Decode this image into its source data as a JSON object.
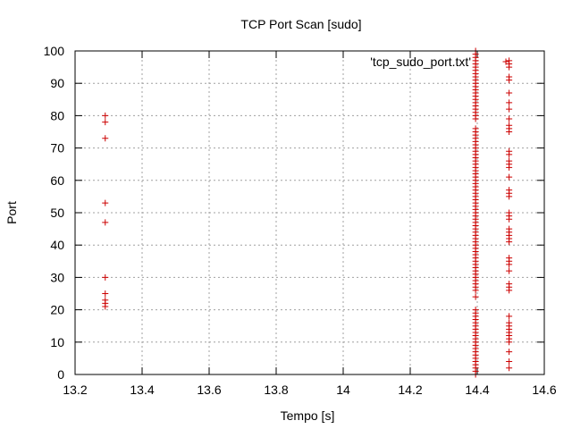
{
  "chart_data": {
    "type": "scatter",
    "title": "TCP Port Scan [sudo]",
    "xlabel": "Tempo [s]",
    "ylabel": "Port",
    "xlim": [
      13.2,
      14.6
    ],
    "ylim": [
      0,
      100
    ],
    "xticks": [
      "13.2",
      "13.4",
      "13.6",
      "13.8",
      "14",
      "14.2",
      "14.4",
      "14.6"
    ],
    "yticks": [
      "0",
      "10",
      "20",
      "30",
      "40",
      "50",
      "60",
      "70",
      "80",
      "90",
      "100"
    ],
    "grid": true,
    "legend_position": "top-right",
    "marker": "plus",
    "series": [
      {
        "name": "'tcp_sudo_port.txt'",
        "color": "#cc0000",
        "points": [
          {
            "x": 13.29,
            "y": 80
          },
          {
            "x": 13.29,
            "y": 78
          },
          {
            "x": 13.29,
            "y": 73
          },
          {
            "x": 13.29,
            "y": 53
          },
          {
            "x": 13.29,
            "y": 47
          },
          {
            "x": 13.29,
            "y": 30
          },
          {
            "x": 13.29,
            "y": 25
          },
          {
            "x": 13.29,
            "y": 23
          },
          {
            "x": 13.29,
            "y": 22
          },
          {
            "x": 13.29,
            "y": 21
          },
          {
            "x": 14.395,
            "y": 100
          },
          {
            "x": 14.395,
            "y": 99
          },
          {
            "x": 14.395,
            "y": 98
          },
          {
            "x": 14.395,
            "y": 97
          },
          {
            "x": 14.395,
            "y": 96
          },
          {
            "x": 14.395,
            "y": 95
          },
          {
            "x": 14.395,
            "y": 94
          },
          {
            "x": 14.395,
            "y": 93
          },
          {
            "x": 14.395,
            "y": 92
          },
          {
            "x": 14.395,
            "y": 91
          },
          {
            "x": 14.395,
            "y": 90
          },
          {
            "x": 14.395,
            "y": 89
          },
          {
            "x": 14.395,
            "y": 88
          },
          {
            "x": 14.395,
            "y": 87
          },
          {
            "x": 14.395,
            "y": 86
          },
          {
            "x": 14.395,
            "y": 85
          },
          {
            "x": 14.395,
            "y": 84
          },
          {
            "x": 14.395,
            "y": 83
          },
          {
            "x": 14.395,
            "y": 82
          },
          {
            "x": 14.395,
            "y": 81
          },
          {
            "x": 14.395,
            "y": 80
          },
          {
            "x": 14.395,
            "y": 79
          },
          {
            "x": 14.395,
            "y": 76
          },
          {
            "x": 14.395,
            "y": 75
          },
          {
            "x": 14.395,
            "y": 74
          },
          {
            "x": 14.395,
            "y": 73
          },
          {
            "x": 14.395,
            "y": 72
          },
          {
            "x": 14.395,
            "y": 71
          },
          {
            "x": 14.395,
            "y": 70
          },
          {
            "x": 14.395,
            "y": 69
          },
          {
            "x": 14.395,
            "y": 68
          },
          {
            "x": 14.395,
            "y": 67
          },
          {
            "x": 14.395,
            "y": 66
          },
          {
            "x": 14.395,
            "y": 65
          },
          {
            "x": 14.395,
            "y": 64
          },
          {
            "x": 14.395,
            "y": 63
          },
          {
            "x": 14.395,
            "y": 62
          },
          {
            "x": 14.395,
            "y": 61
          },
          {
            "x": 14.395,
            "y": 60
          },
          {
            "x": 14.395,
            "y": 59
          },
          {
            "x": 14.395,
            "y": 58
          },
          {
            "x": 14.395,
            "y": 57
          },
          {
            "x": 14.395,
            "y": 56
          },
          {
            "x": 14.395,
            "y": 55
          },
          {
            "x": 14.395,
            "y": 54
          },
          {
            "x": 14.395,
            "y": 53
          },
          {
            "x": 14.395,
            "y": 52
          },
          {
            "x": 14.395,
            "y": 51
          },
          {
            "x": 14.395,
            "y": 50
          },
          {
            "x": 14.395,
            "y": 49
          },
          {
            "x": 14.395,
            "y": 48
          },
          {
            "x": 14.395,
            "y": 47
          },
          {
            "x": 14.395,
            "y": 46
          },
          {
            "x": 14.395,
            "y": 45
          },
          {
            "x": 14.395,
            "y": 44
          },
          {
            "x": 14.395,
            "y": 43
          },
          {
            "x": 14.395,
            "y": 42
          },
          {
            "x": 14.395,
            "y": 41
          },
          {
            "x": 14.395,
            "y": 40
          },
          {
            "x": 14.395,
            "y": 39
          },
          {
            "x": 14.395,
            "y": 38
          },
          {
            "x": 14.395,
            "y": 37
          },
          {
            "x": 14.395,
            "y": 36
          },
          {
            "x": 14.395,
            "y": 35
          },
          {
            "x": 14.395,
            "y": 34
          },
          {
            "x": 14.395,
            "y": 33
          },
          {
            "x": 14.395,
            "y": 32
          },
          {
            "x": 14.395,
            "y": 31
          },
          {
            "x": 14.395,
            "y": 30
          },
          {
            "x": 14.395,
            "y": 29
          },
          {
            "x": 14.395,
            "y": 28
          },
          {
            "x": 14.395,
            "y": 27
          },
          {
            "x": 14.395,
            "y": 26
          },
          {
            "x": 14.395,
            "y": 24
          },
          {
            "x": 14.395,
            "y": 20
          },
          {
            "x": 14.395,
            "y": 19
          },
          {
            "x": 14.395,
            "y": 18
          },
          {
            "x": 14.395,
            "y": 17
          },
          {
            "x": 14.395,
            "y": 16
          },
          {
            "x": 14.395,
            "y": 15
          },
          {
            "x": 14.395,
            "y": 14
          },
          {
            "x": 14.395,
            "y": 13
          },
          {
            "x": 14.395,
            "y": 12
          },
          {
            "x": 14.395,
            "y": 11
          },
          {
            "x": 14.395,
            "y": 10
          },
          {
            "x": 14.395,
            "y": 9
          },
          {
            "x": 14.395,
            "y": 8
          },
          {
            "x": 14.395,
            "y": 7
          },
          {
            "x": 14.395,
            "y": 6
          },
          {
            "x": 14.395,
            "y": 5
          },
          {
            "x": 14.395,
            "y": 4
          },
          {
            "x": 14.395,
            "y": 3
          },
          {
            "x": 14.395,
            "y": 2
          },
          {
            "x": 14.395,
            "y": 1
          },
          {
            "x": 14.395,
            "y": 0
          },
          {
            "x": 14.495,
            "y": 97
          },
          {
            "x": 14.495,
            "y": 96
          },
          {
            "x": 14.495,
            "y": 95
          },
          {
            "x": 14.495,
            "y": 92
          },
          {
            "x": 14.495,
            "y": 91
          },
          {
            "x": 14.495,
            "y": 87
          },
          {
            "x": 14.495,
            "y": 84
          },
          {
            "x": 14.495,
            "y": 82
          },
          {
            "x": 14.495,
            "y": 79
          },
          {
            "x": 14.495,
            "y": 77
          },
          {
            "x": 14.495,
            "y": 76
          },
          {
            "x": 14.495,
            "y": 75
          },
          {
            "x": 14.495,
            "y": 69
          },
          {
            "x": 14.495,
            "y": 68
          },
          {
            "x": 14.495,
            "y": 66
          },
          {
            "x": 14.495,
            "y": 65
          },
          {
            "x": 14.495,
            "y": 64
          },
          {
            "x": 14.495,
            "y": 61
          },
          {
            "x": 14.495,
            "y": 57
          },
          {
            "x": 14.495,
            "y": 56
          },
          {
            "x": 14.495,
            "y": 55
          },
          {
            "x": 14.495,
            "y": 50
          },
          {
            "x": 14.495,
            "y": 49
          },
          {
            "x": 14.495,
            "y": 48
          },
          {
            "x": 14.495,
            "y": 45
          },
          {
            "x": 14.495,
            "y": 44
          },
          {
            "x": 14.495,
            "y": 43
          },
          {
            "x": 14.495,
            "y": 42
          },
          {
            "x": 14.495,
            "y": 41
          },
          {
            "x": 14.495,
            "y": 36
          },
          {
            "x": 14.495,
            "y": 35
          },
          {
            "x": 14.495,
            "y": 34
          },
          {
            "x": 14.495,
            "y": 32
          },
          {
            "x": 14.495,
            "y": 28
          },
          {
            "x": 14.495,
            "y": 27
          },
          {
            "x": 14.495,
            "y": 26
          },
          {
            "x": 14.495,
            "y": 18
          },
          {
            "x": 14.495,
            "y": 16
          },
          {
            "x": 14.495,
            "y": 15
          },
          {
            "x": 14.495,
            "y": 14
          },
          {
            "x": 14.495,
            "y": 13
          },
          {
            "x": 14.495,
            "y": 12
          },
          {
            "x": 14.495,
            "y": 11
          },
          {
            "x": 14.495,
            "y": 10
          },
          {
            "x": 14.495,
            "y": 7
          },
          {
            "x": 14.495,
            "y": 4
          },
          {
            "x": 14.495,
            "y": 2
          }
        ]
      }
    ]
  }
}
